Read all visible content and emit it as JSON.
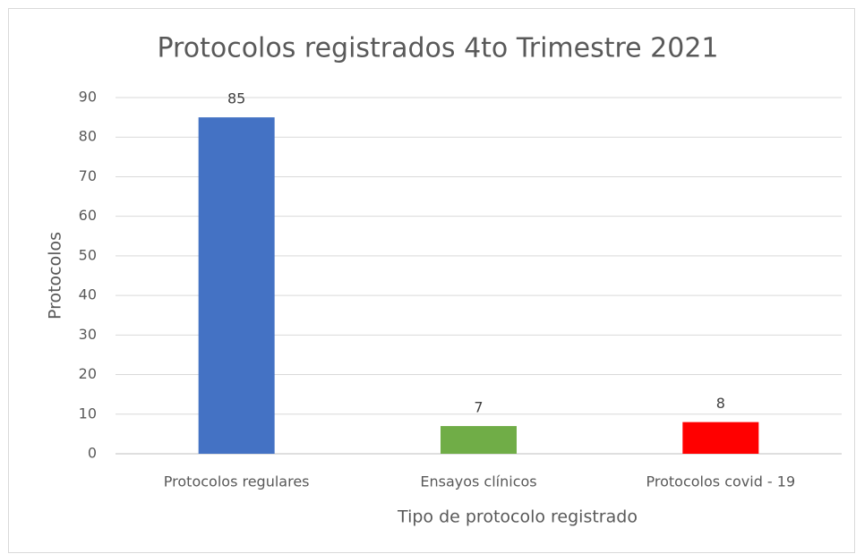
{
  "chart_data": {
    "type": "bar",
    "title": "Protocolos registrados 4to Trimestre 2021",
    "x_label": "Tipo de protocolo registrado",
    "y_label": "Protocolos",
    "categories": [
      "Protocolos regulares",
      "Ensayos clínicos",
      "Protocolos covid - 19"
    ],
    "values": [
      85,
      7,
      8
    ],
    "colors": [
      "#4472c4",
      "#70ad47",
      "#ff0000"
    ],
    "ylim": [
      0,
      90
    ],
    "yticks": [
      0,
      10,
      20,
      30,
      40,
      50,
      60,
      70,
      80,
      90
    ],
    "grid": true
  }
}
